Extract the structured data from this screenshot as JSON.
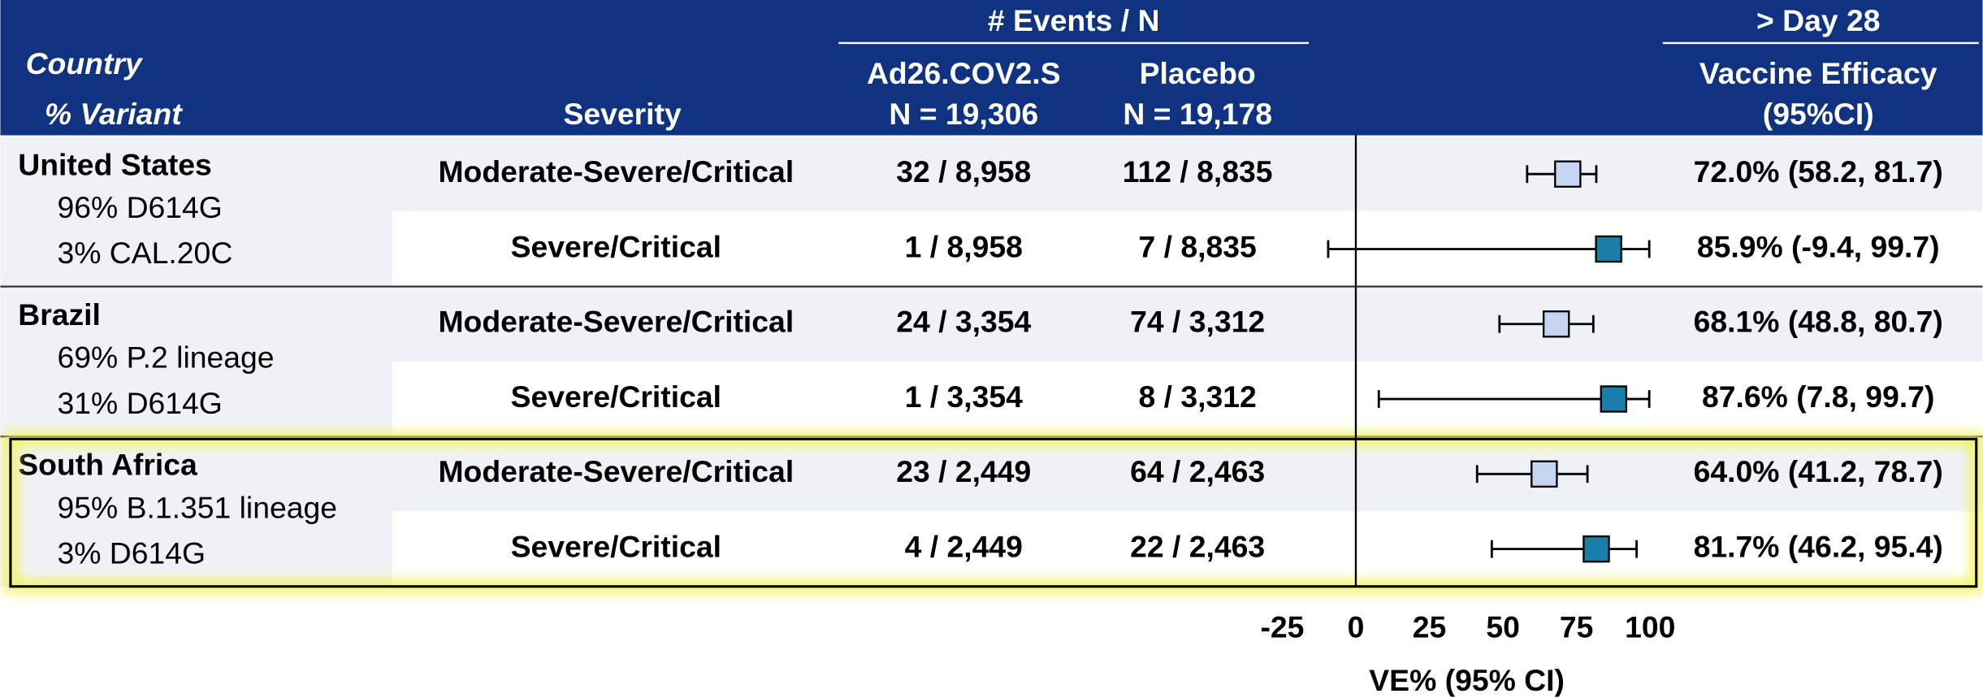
{
  "chart_data": {
    "type": "forest",
    "header": {
      "events_group": "# Events / N",
      "day_group": "> Day 28",
      "country": "Country",
      "variant": "% Variant",
      "severity": "Severity",
      "vaccine": "Ad26.COV2.S",
      "vaccine_n": "N = 19,306",
      "placebo": "Placebo",
      "placebo_n": "N = 19,178",
      "efficacy": "Vaccine Efficacy",
      "efficacy_ci": "(95%CI)"
    },
    "groups": [
      {
        "country": "United States",
        "variants": [
          "96% D614G",
          "3% CAL.20C"
        ],
        "rows": [
          {
            "severity": "Moderate-Severe/Critical",
            "vaccine": "32 / 8,958",
            "placebo": "112 / 8,835",
            "estimate": 72.0,
            "lower": 58.2,
            "upper": 81.7,
            "value_label": "72.0% (58.2, 81.7)",
            "color": "#c6d5f2"
          },
          {
            "severity": "Severe/Critical",
            "vaccine": "1 / 8,958",
            "placebo": "7 / 8,835",
            "estimate": 85.9,
            "lower": -9.4,
            "upper": 99.7,
            "value_label": "85.9% (-9.4, 99.7)",
            "color": "#1a7fa8"
          }
        ]
      },
      {
        "country": "Brazil",
        "variants": [
          "69% P.2 lineage",
          "31% D614G"
        ],
        "rows": [
          {
            "severity": "Moderate-Severe/Critical",
            "vaccine": "24 / 3,354",
            "placebo": "74 / 3,312",
            "estimate": 68.1,
            "lower": 48.8,
            "upper": 80.7,
            "value_label": "68.1% (48.8, 80.7)",
            "color": "#c6d5f2"
          },
          {
            "severity": "Severe/Critical",
            "vaccine": "1 / 3,354",
            "placebo": "8 / 3,312",
            "estimate": 87.6,
            "lower": 7.8,
            "upper": 99.7,
            "value_label": "87.6% (7.8, 99.7)",
            "color": "#1a7fa8"
          }
        ]
      },
      {
        "country": "South Africa",
        "variants": [
          "95% B.1.351 lineage",
          "3% D614G"
        ],
        "rows": [
          {
            "severity": "Moderate-Severe/Critical",
            "vaccine": "23 / 2,449",
            "placebo": "64 / 2,463",
            "estimate": 64.0,
            "lower": 41.2,
            "upper": 78.7,
            "value_label": "64.0% (41.2, 78.7)",
            "color": "#c6d5f2"
          },
          {
            "severity": "Severe/Critical",
            "vaccine": "4 / 2,449",
            "placebo": "22 / 2,463",
            "estimate": 81.7,
            "lower": 46.2,
            "upper": 95.4,
            "value_label": "81.7% (46.2, 95.4)",
            "color": "#1a7fa8"
          }
        ]
      }
    ],
    "highlight": 2,
    "xlim": [
      -25,
      100
    ],
    "xticks": [
      -25,
      0,
      25,
      50,
      75,
      100
    ],
    "xlabel": "VE% (95% CI)",
    "header_color": "#0f3380"
  }
}
